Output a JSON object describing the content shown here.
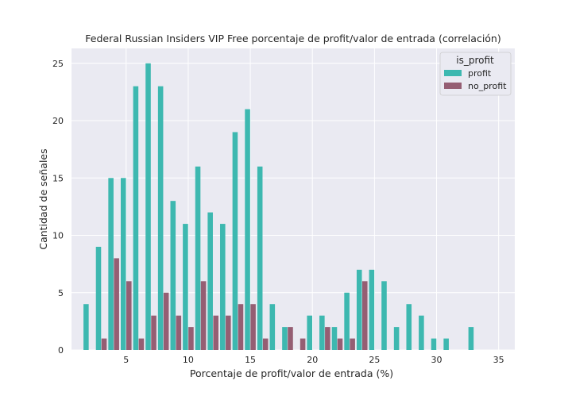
{
  "chart_data": {
    "type": "bar",
    "title": "Federal Russian Insiders VIP Free porcentaje de profit/valor de entrada (correlación)",
    "xlabel": "Porcentaje de profit/valor de entrada (%)",
    "ylabel": "Cantidad de señales",
    "xlim": [
      0.6,
      36.3
    ],
    "ylim": [
      0,
      26.3
    ],
    "xticks": [
      5,
      10,
      15,
      20,
      25,
      30,
      35
    ],
    "yticks": [
      0,
      5,
      10,
      15,
      20,
      25
    ],
    "grid": true,
    "legend": {
      "title": "is_profit",
      "position": "top-right",
      "entries": [
        "profit",
        "no_profit"
      ]
    },
    "series": [
      {
        "name": "profit",
        "color": "#3db8b0",
        "x": [
          2,
          3,
          4,
          5,
          6,
          7,
          8,
          9,
          10,
          11,
          12,
          13,
          14,
          15,
          16,
          17,
          18,
          20,
          21,
          22,
          23,
          24,
          25,
          26,
          27,
          28,
          29,
          30,
          31,
          33
        ],
        "values": [
          4,
          9,
          15,
          15,
          23,
          25,
          23,
          13,
          11,
          16,
          12,
          11,
          19,
          21,
          16,
          4,
          2,
          3,
          3,
          2,
          5,
          7,
          7,
          6,
          2,
          4,
          3,
          1,
          1,
          2
        ]
      },
      {
        "name": "no_profit",
        "color": "#955e73",
        "x": [
          3,
          4,
          5,
          6,
          7,
          8,
          9,
          10,
          11,
          12,
          13,
          14,
          15,
          16,
          18,
          19,
          21,
          22,
          23,
          24
        ],
        "values": [
          1,
          8,
          6,
          1,
          3,
          5,
          3,
          2,
          6,
          3,
          3,
          4,
          4,
          1,
          2,
          1,
          2,
          1,
          1,
          6
        ]
      }
    ]
  }
}
